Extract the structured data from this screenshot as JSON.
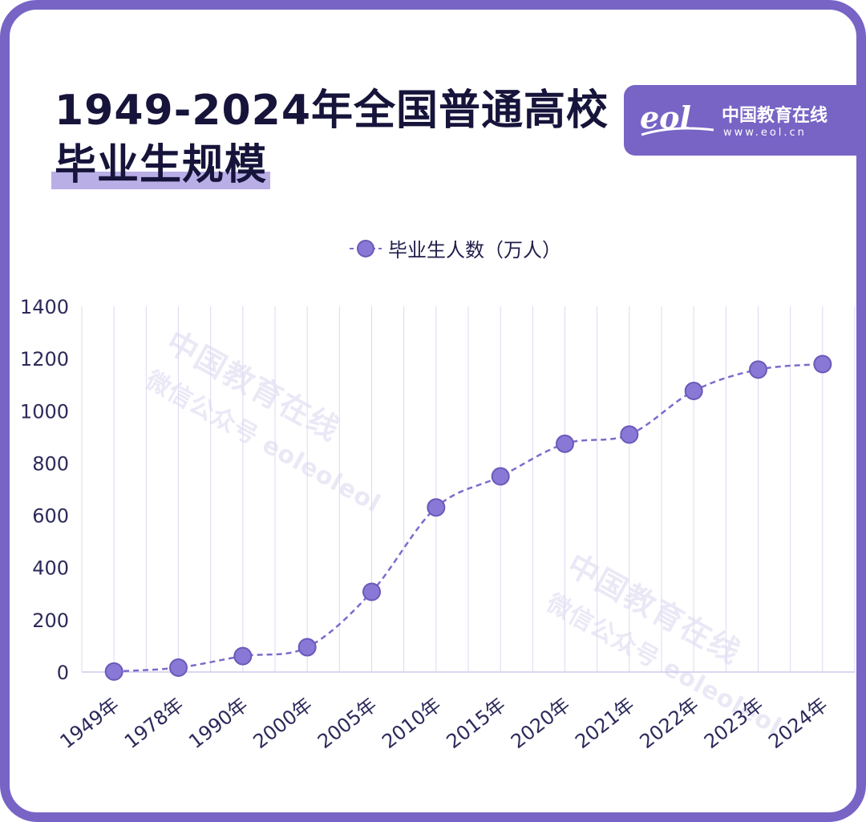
{
  "title": {
    "line1": "1949-2024年全国普通高校",
    "line2": "毕业生规模"
  },
  "logo": {
    "mark": "eol",
    "name": "中国教育在线",
    "url": "www.eol.cn"
  },
  "watermark": {
    "line1": "中国教育在线",
    "line2": "微信公众号 eoleoleol"
  },
  "colors": {
    "frame": "#7764c5",
    "series": "#8a78d6",
    "series_stroke": "#6b5ab8",
    "line": "#7d6bcc",
    "grid": "#ddd8f2",
    "text": "#16143a"
  },
  "chart_data": {
    "type": "line",
    "categories": [
      "1949年",
      "1978年",
      "1990年",
      "2000年",
      "2005年",
      "2010年",
      "2015年",
      "2020年",
      "2021年",
      "2022年",
      "2023年",
      "2024年"
    ],
    "series": [
      {
        "name": "毕业生人数（万人）",
        "values": [
          2,
          17,
          61,
          95,
          307,
          630,
          749,
          874,
          909,
          1076,
          1158,
          1179
        ]
      }
    ],
    "yticks": [
      "0",
      "200",
      "400",
      "600",
      "800",
      "1000",
      "1200",
      "1400"
    ],
    "ylim": [
      0,
      1400
    ],
    "grid": "vertical",
    "line_style": "dashed-smooth",
    "legend": "top-center"
  }
}
